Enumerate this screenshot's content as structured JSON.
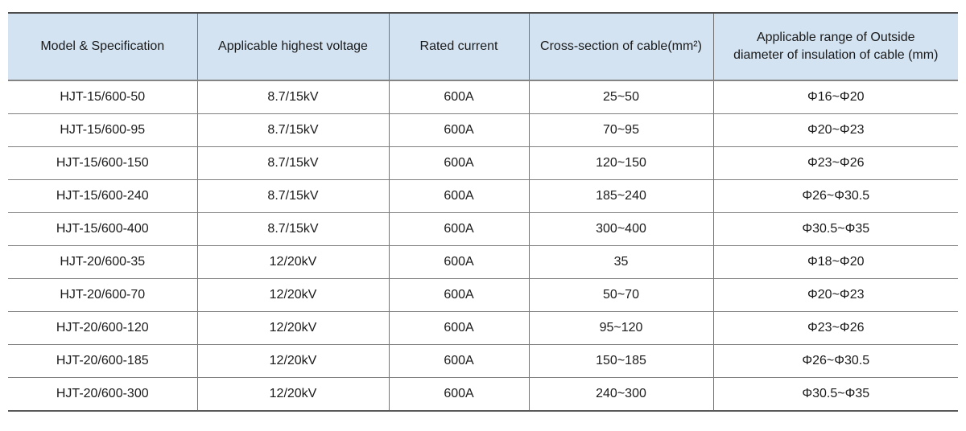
{
  "colors": {
    "header_background": "#d3e3f2",
    "grid_border": "#7f7f7f",
    "outer_border_top": "#4d4d4d",
    "outer_border_bottom": "#5a5a5a",
    "text": "#1a1a1a"
  },
  "table": {
    "columns": [
      "Model & Specification",
      "Applicable highest voltage",
      "Rated current",
      "Cross-section of cable(mm²)",
      "Applicable range of Outside diameter of insulation of cable (mm)"
    ],
    "rows": [
      [
        "HJT-15/600-50",
        "8.7/15kV",
        "600A",
        "25~50",
        "Φ16~Φ20"
      ],
      [
        "HJT-15/600-95",
        "8.7/15kV",
        "600A",
        "70~95",
        "Φ20~Φ23"
      ],
      [
        "HJT-15/600-150",
        "8.7/15kV",
        "600A",
        "120~150",
        "Φ23~Φ26"
      ],
      [
        "HJT-15/600-240",
        "8.7/15kV",
        "600A",
        "185~240",
        "Φ26~Φ30.5"
      ],
      [
        "HJT-15/600-400",
        "8.7/15kV",
        "600A",
        "300~400",
        "Φ30.5~Φ35"
      ],
      [
        "HJT-20/600-35",
        "12/20kV",
        "600A",
        "35",
        "Φ18~Φ20"
      ],
      [
        "HJT-20/600-70",
        "12/20kV",
        "600A",
        "50~70",
        "Φ20~Φ23"
      ],
      [
        "HJT-20/600-120",
        "12/20kV",
        "600A",
        "95~120",
        "Φ23~Φ26"
      ],
      [
        "HJT-20/600-185",
        "12/20kV",
        "600A",
        "150~185",
        "Φ26~Φ30.5"
      ],
      [
        "HJT-20/600-300",
        "12/20kV",
        "600A",
        "240~300",
        "Φ30.5~Φ35"
      ]
    ]
  }
}
